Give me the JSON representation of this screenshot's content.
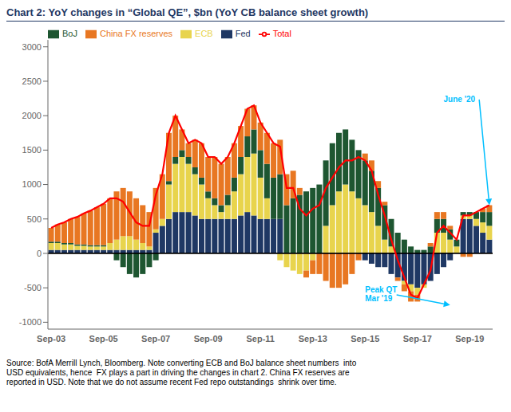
{
  "chart_data": {
    "type": "bar",
    "title": "Chart 2: YoY changes in “Global QE”, $bn (YoY CB balance sheet growth)",
    "stacked": true,
    "grid": false,
    "legend": "upper left",
    "categories": [
      "Sep-03",
      null,
      null,
      null,
      null,
      null,
      null,
      null,
      "Sep-05",
      null,
      null,
      null,
      null,
      null,
      null,
      null,
      "Sep-07",
      null,
      null,
      null,
      null,
      null,
      null,
      null,
      "Sep-09",
      null,
      null,
      null,
      null,
      null,
      null,
      null,
      "Sep-11",
      null,
      null,
      null,
      null,
      null,
      null,
      null,
      "Sep-13",
      null,
      null,
      null,
      null,
      null,
      null,
      null,
      "Sep-15",
      null,
      null,
      null,
      null,
      null,
      null,
      null,
      "Sep-17",
      null,
      null,
      null,
      null,
      null,
      null,
      null,
      "Sep-19",
      null,
      null,
      null
    ],
    "ylim": [
      -1100,
      3100
    ],
    "yticks": [
      -1000,
      -500,
      0,
      500,
      1000,
      1500,
      2000,
      2500,
      3000
    ],
    "series": [
      {
        "name": "Fed",
        "type": "bar",
        "color": "#1f3864",
        "values": [
          50,
          50,
          50,
          50,
          50,
          50,
          50,
          50,
          50,
          50,
          50,
          50,
          50,
          50,
          50,
          50,
          300,
          400,
          500,
          600,
          600,
          600,
          550,
          500,
          500,
          500,
          500,
          500,
          500,
          550,
          600,
          550,
          500,
          500,
          500,
          500,
          0,
          0,
          0,
          0,
          0,
          0,
          0,
          0,
          0,
          0,
          0,
          0,
          -100,
          -150,
          -200,
          -200,
          -300,
          -350,
          -400,
          -450,
          -500,
          -450,
          -400,
          -300,
          -200,
          -100,
          0,
          500,
          500,
          400,
          300,
          200
        ]
      },
      {
        "name": "ECB",
        "type": "bar",
        "color": "#e8d44d",
        "values": [
          100,
          100,
          80,
          80,
          60,
          60,
          50,
          50,
          50,
          100,
          150,
          200,
          200,
          150,
          100,
          50,
          50,
          100,
          500,
          700,
          800,
          700,
          600,
          500,
          300,
          200,
          100,
          200,
          400,
          600,
          800,
          900,
          600,
          300,
          0,
          -100,
          -200,
          -250,
          -300,
          -250,
          -100,
          0,
          400,
          700,
          900,
          1000,
          900,
          800,
          700,
          600,
          400,
          200,
          100,
          0,
          -50,
          -100,
          -100,
          -50,
          0,
          300,
          300,
          200,
          100,
          50,
          50,
          100,
          150,
          200
        ]
      },
      {
        "name": "BoJ",
        "type": "bar",
        "color": "#1e5631",
        "values": [
          20,
          20,
          20,
          20,
          20,
          20,
          20,
          20,
          20,
          0,
          -100,
          -200,
          -300,
          -350,
          -300,
          -200,
          -100,
          0,
          50,
          100,
          100,
          100,
          100,
          100,
          100,
          100,
          100,
          150,
          200,
          250,
          300,
          350,
          400,
          500,
          600,
          650,
          700,
          800,
          850,
          900,
          950,
          1000,
          950,
          900,
          850,
          800,
          750,
          700,
          650,
          600,
          550,
          500,
          400,
          300,
          200,
          100,
          50,
          50,
          100,
          200,
          200,
          150,
          100,
          50,
          50,
          100,
          150,
          200
        ]
      },
      {
        "name": "China FX reserves",
        "type": "bar",
        "color": "#e87722",
        "values": [
          200,
          250,
          300,
          350,
          400,
          450,
          500,
          550,
          600,
          650,
          700,
          700,
          650,
          600,
          550,
          500,
          600,
          650,
          700,
          600,
          300,
          200,
          400,
          500,
          500,
          600,
          600,
          550,
          500,
          450,
          400,
          350,
          400,
          450,
          500,
          500,
          450,
          400,
          100,
          -100,
          -200,
          -300,
          -400,
          -500,
          -500,
          -450,
          -300,
          -100,
          100,
          150,
          100,
          50,
          0,
          -50,
          -100,
          -150,
          -100,
          0,
          50,
          100,
          100,
          50,
          0,
          -50,
          -50,
          0,
          50,
          100
        ]
      },
      {
        "name": "Total",
        "type": "line",
        "color": "#ff0000",
        "values": [
          370,
          420,
          450,
          500,
          530,
          580,
          620,
          670,
          720,
          800,
          800,
          750,
          600,
          450,
          400,
          400,
          850,
          1150,
          1750,
          2000,
          1800,
          1600,
          1650,
          1600,
          1400,
          1400,
          1300,
          1400,
          1600,
          1850,
          2100,
          2150,
          1900,
          1750,
          1600,
          1550,
          950,
          950,
          650,
          550,
          650,
          700,
          950,
          1100,
          1250,
          1350,
          1350,
          1400,
          1350,
          1200,
          850,
          550,
          200,
          -100,
          -350,
          -600,
          -650,
          -450,
          -250,
          300,
          400,
          300,
          200,
          550,
          550,
          600,
          650,
          700
        ]
      }
    ],
    "annotations": [
      {
        "text": "June '20",
        "x": 67,
        "y": 700,
        "text_x": 60,
        "text_y": 2200,
        "color": "#00bfff"
      },
      {
        "text": "Peak QT\nMar '19",
        "x": 61,
        "y": -750,
        "text_x": 48,
        "text_y": -700,
        "color": "#00bfff"
      }
    ],
    "source": "Source: BofA Merrill Lynch, Bloomberg. Note converting ECB and BoJ balance sheet numbers  into\nUSD equivalents, hence  FX plays a part in driving the changes in chart 2. China FX reserves are\nreported in USD. Note that we do not assume recent Fed repo outstandings  shrink over time."
  }
}
